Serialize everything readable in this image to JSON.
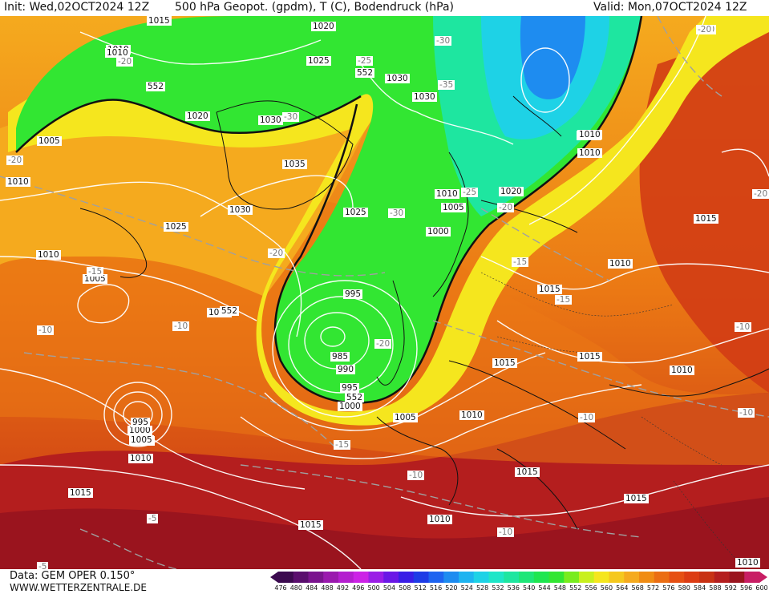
{
  "header": {
    "init": "Init: Wed,02OCT2024 12Z",
    "title": "500 hPa Geopot. (gpdm), T (C), Bodendruck (hPa)",
    "valid": "Valid: Mon,07OCT2024 12Z"
  },
  "footer": {
    "data_source": "Data: GEM OPER 0.150°",
    "website": "WWW.WETTERZENTRALE.DE"
  },
  "legend": {
    "ticks": [
      "476",
      "480",
      "484",
      "488",
      "492",
      "496",
      "500",
      "504",
      "508",
      "512",
      "516",
      "520",
      "524",
      "528",
      "532",
      "536",
      "540",
      "544",
      "548",
      "552",
      "556",
      "560",
      "564",
      "568",
      "572",
      "576",
      "580",
      "584",
      "588",
      "592",
      "596",
      "600"
    ],
    "colors": [
      "#3b0a4f",
      "#5a0f6e",
      "#7a148e",
      "#9a19ae",
      "#b41ecf",
      "#cc22e6",
      "#9a1ee6",
      "#6a18e6",
      "#3a1ee6",
      "#1e3ce6",
      "#1e64f0",
      "#1e8cf0",
      "#1eb4f0",
      "#1ed2e6",
      "#1ee6c8",
      "#1ee6a0",
      "#1ee678",
      "#1ee650",
      "#32e632",
      "#78ec1e",
      "#c8f01e",
      "#f5e61e",
      "#f5c81e",
      "#f5aa1e",
      "#f08c14",
      "#eb6e14",
      "#e65014",
      "#dc3c14",
      "#c83214",
      "#b41e1e",
      "#9a141e",
      "#c81e64"
    ]
  },
  "pressure_labels": [
    "1015",
    "1020",
    "1010",
    "1025",
    "1005",
    "1030",
    "1030",
    "1030",
    "1035",
    "1030",
    "1020",
    "1025",
    "1010",
    "1005",
    "1000",
    "995",
    "985",
    "990",
    "995",
    "1000",
    "1005",
    "1010",
    "1015",
    "1015",
    "1010",
    "1015",
    "1010",
    "1015",
    "1010",
    "1015",
    "1015",
    "1010",
    "1010",
    "1005",
    "1010",
    "1020",
    "1010",
    "1025",
    "1015",
    "1010",
    "1005",
    "1000",
    "995",
    "1005",
    "1010",
    "1015",
    "1015",
    "1010",
    "1010"
  ],
  "height_labels": [
    "552",
    "552",
    "552",
    "552"
  ],
  "temp_labels": [
    "-20",
    "-25",
    "-30",
    "-35",
    "-30",
    "-20",
    "-20",
    "-25",
    "-20",
    "-30",
    "-20",
    "-15",
    "-15",
    "-20",
    "-10",
    "-10",
    "-15",
    "-10",
    "-10",
    "-10",
    "-10",
    "-5",
    "-5",
    "-20",
    "-15",
    "-10",
    "-20"
  ],
  "colors": {
    "warm_dark": "#a01414",
    "warm": "#d23c14",
    "orange": "#eb7814",
    "light_orange": "#f5aa1e",
    "yellow": "#f5e61e",
    "green": "#32e632",
    "cyan": "#1ee6c8",
    "blue": "#1eb4f0"
  }
}
